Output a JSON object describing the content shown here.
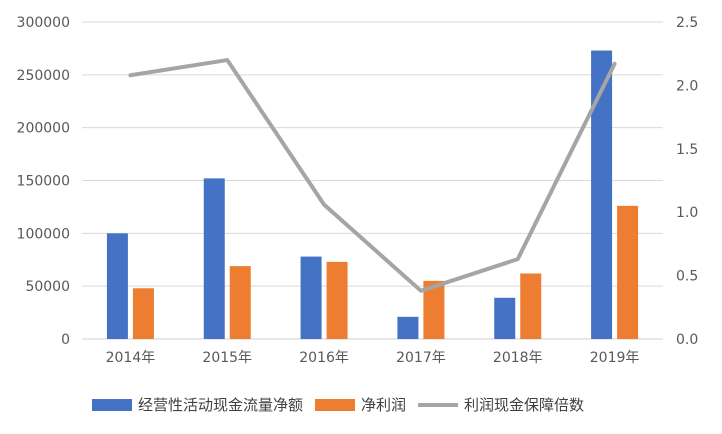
{
  "chart_data": {
    "type": "bar",
    "categories": [
      "2014年",
      "2015年",
      "2016年",
      "2017年",
      "2018年",
      "2019年"
    ],
    "series": [
      {
        "name": "经营性活动现金流量净额",
        "type": "bar",
        "axis": "left",
        "color": "#4472C4",
        "values": [
          100000,
          152000,
          78000,
          21000,
          39000,
          273000
        ]
      },
      {
        "name": "净利润",
        "type": "bar",
        "axis": "left",
        "color": "#ED7D31",
        "values": [
          48000,
          69000,
          73000,
          55000,
          62000,
          126000
        ]
      },
      {
        "name": "利润现金保障倍数",
        "type": "line",
        "axis": "right",
        "color": "#A5A5A5",
        "values": [
          2.08,
          2.2,
          1.06,
          0.38,
          0.63,
          2.17
        ]
      }
    ],
    "y_left": {
      "min": 0,
      "max": 300000,
      "step": 50000,
      "tick_labels": [
        "0",
        "50000",
        "100000",
        "150000",
        "200000",
        "250000",
        "300000"
      ]
    },
    "y_right": {
      "min": 0,
      "max": 2.5,
      "step": 0.5,
      "tick_labels": [
        "0.0",
        "0.5",
        "1.0",
        "1.5",
        "2.0",
        "2.5"
      ]
    },
    "grid": true,
    "legend_position": "bottom"
  }
}
